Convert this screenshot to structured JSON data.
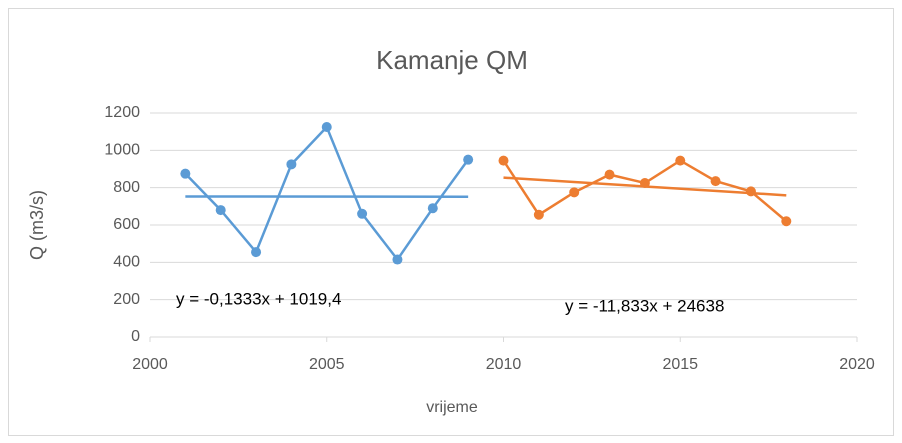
{
  "chart_data": {
    "type": "scatter",
    "title": "Kamanje QM",
    "xlabel": "vrijeme",
    "ylabel": "Q (m3/s)",
    "xlim": [
      2000,
      2020
    ],
    "xticks": [
      2000,
      2005,
      2010,
      2015,
      2020
    ],
    "ylim": [
      0,
      1200
    ],
    "yticks": [
      0,
      200,
      400,
      600,
      800,
      1000,
      1200
    ],
    "grid": true,
    "series": [
      {
        "color": "#5b9bd5",
        "x": [
          2001,
          2002,
          2003,
          2004,
          2005,
          2006,
          2007,
          2008,
          2009
        ],
        "values": [
          875,
          680,
          455,
          925,
          1125,
          660,
          415,
          690,
          950
        ]
      },
      {
        "color": "#ed7d31",
        "x": [
          2010,
          2011,
          2012,
          2013,
          2014,
          2015,
          2016,
          2017,
          2018
        ],
        "values": [
          945,
          655,
          775,
          870,
          825,
          945,
          835,
          780,
          620
        ]
      }
    ],
    "trendlines": [
      {
        "color": "#5b9bd5",
        "x": [
          2001,
          2009
        ],
        "values": [
          752.7,
          751.6
        ]
      },
      {
        "color": "#ed7d31",
        "x": [
          2010,
          2018
        ],
        "values": [
          853.7,
          759.0
        ]
      }
    ],
    "annotations": [
      "y = -0,1333x + 1019,4",
      "y = -11,833x + 24638"
    ]
  }
}
